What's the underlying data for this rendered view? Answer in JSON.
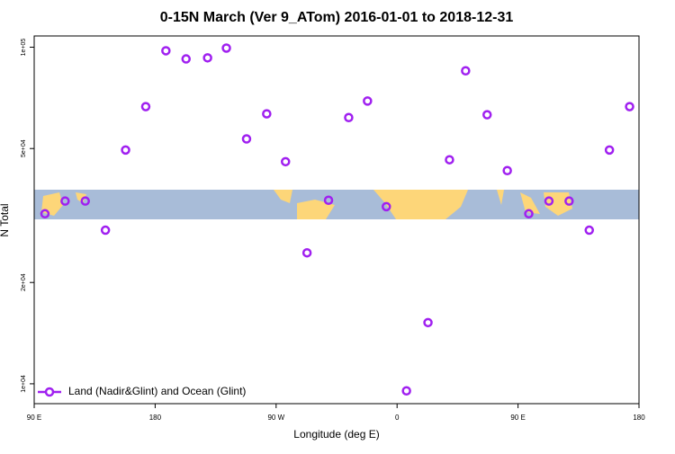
{
  "chart_data": {
    "type": "scatter",
    "title": "0-15N March (Ver 9_ATom)   2016-01-01 to 2018-12-31",
    "x_label": "Longitude (deg E)",
    "y_label": "N Total",
    "x": [
      98,
      113,
      128,
      143,
      158,
      173,
      188,
      203,
      219,
      233,
      248,
      263,
      277,
      293,
      309,
      324,
      338,
      352,
      367,
      383,
      399,
      411,
      427,
      442,
      458,
      473,
      488,
      503,
      518,
      533
    ],
    "series": [
      {
        "name": "Land (Nadir&Glint) and Ocean (Glint)",
        "color": "#a020f0",
        "values": [
          32000,
          34900,
          34900,
          28600,
          49500,
          66600,
          97600,
          92300,
          93000,
          99400,
          53400,
          63400,
          45700,
          24500,
          35100,
          61800,
          69200,
          33600,
          9530,
          15200,
          46300,
          85100,
          63000,
          43000,
          32000,
          34900,
          34900,
          28600,
          49500,
          66600
        ]
      }
    ],
    "xlim": [
      90,
      540
    ],
    "xticks": [
      {
        "value": 90,
        "label": "90 E"
      },
      180,
      {
        "value": 270,
        "label": "90 W"
      },
      {
        "value": 360,
        "label": "0"
      },
      {
        "value": 450,
        "label": "90 E"
      },
      {
        "value": 540,
        "label": "180"
      }
    ],
    "ylim": [
      8730,
      108000
    ],
    "ylog": true,
    "yticks": [
      {
        "value": 10000,
        "label": "1e+04"
      },
      {
        "value": 20000,
        "label": "2e+04"
      },
      {
        "value": 50000,
        "label": "5e+04"
      },
      {
        "value": 100000,
        "label": "1e+05"
      }
    ],
    "legend": "bottom-left"
  }
}
